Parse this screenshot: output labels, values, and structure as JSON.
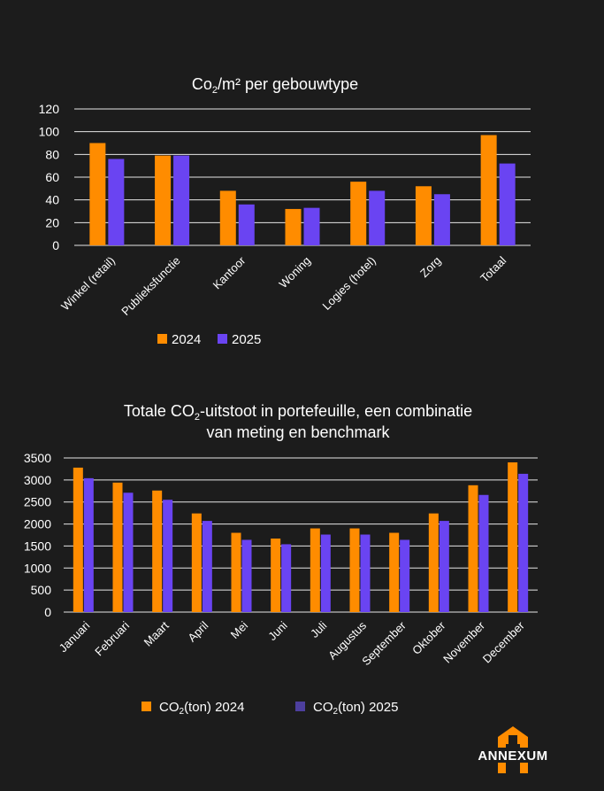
{
  "colors": {
    "background": "#1c1c1c",
    "series_2024": "#ff8c00",
    "series_2025": "#6a44f2",
    "series_2025_legend2": "#4d3f9e",
    "gridline": "#e6e6e6",
    "logo": "#ff8c00"
  },
  "logo": {
    "text": "ANNEXUM",
    "icon": "house-logo-icon"
  },
  "chart_data": [
    {
      "type": "bar",
      "title_main": "Co",
      "title_sub": "2",
      "title_rest": "/m² per gebouwtype",
      "categories": [
        "Winkel (retail)",
        "Publieksfunctie",
        "Kantoor",
        "Woning",
        "Logies (hotel)",
        "Zorg",
        "Totaal"
      ],
      "series": [
        {
          "name": "2024",
          "values": [
            90,
            79,
            48,
            32,
            56,
            52,
            97
          ]
        },
        {
          "name": "2025",
          "values": [
            76,
            79,
            36,
            33,
            48,
            45,
            72
          ]
        }
      ],
      "yticks": [
        0,
        20,
        40,
        60,
        80,
        100,
        120
      ],
      "ylim": [
        0,
        120
      ],
      "legend": [
        "2024",
        "2025"
      ],
      "legend_position": "bottom",
      "grid": true
    },
    {
      "type": "bar",
      "title_line1_a": "Totale CO",
      "title_line1_sub": "2",
      "title_line1_b": "-uitstoot in portefeuille, een combinatie",
      "title_line2": "van meting en benchmark",
      "categories": [
        "Januari",
        "Februari",
        "Maart",
        "April",
        "Mei",
        "Juni",
        "Juli",
        "Augustus",
        "September",
        "Oktober",
        "November",
        "December"
      ],
      "series": [
        {
          "name": "CO2(ton) 2024",
          "values": [
            3280,
            2940,
            2760,
            2240,
            1800,
            1670,
            1900,
            1900,
            1800,
            2240,
            2880,
            3400
          ]
        },
        {
          "name": "CO2(ton) 2025",
          "values": [
            3040,
            2710,
            2550,
            2070,
            1640,
            1540,
            1760,
            1760,
            1640,
            2070,
            2660,
            3140
          ]
        }
      ],
      "yticks": [
        0,
        500,
        1000,
        1500,
        2000,
        2500,
        3000,
        3500
      ],
      "ylim": [
        0,
        3500
      ],
      "legend_2024_pre": "CO",
      "legend_2024_sub": "2",
      "legend_2024_post": "(ton) 2024",
      "legend_2025_pre": "CO",
      "legend_2025_sub": "2",
      "legend_2025_post": "(ton) 2025",
      "legend_position": "bottom",
      "grid": true
    }
  ]
}
